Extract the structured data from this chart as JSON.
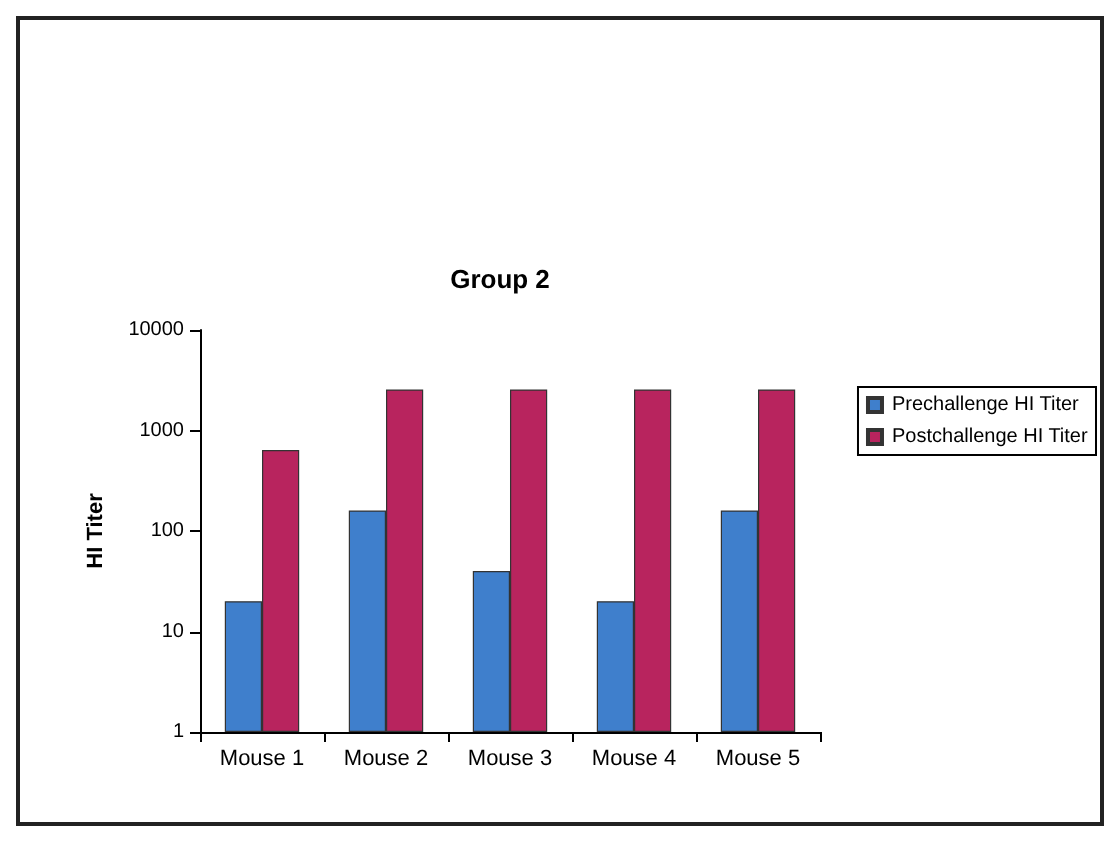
{
  "chart_data": {
    "type": "bar",
    "title": "Group 2",
    "ylabel": "HI Titer",
    "categories": [
      "Mouse 1",
      "Mouse 2",
      "Mouse 3",
      "Mouse 4",
      "Mouse 5"
    ],
    "series": [
      {
        "name": "Prechallenge HI Titer",
        "color": "#3f7fcc",
        "values": [
          20,
          160,
          40,
          20,
          160
        ]
      },
      {
        "name": "Postchallenge HI Titer",
        "color": "#b8245e",
        "values": [
          640,
          2560,
          2560,
          2560,
          2560
        ]
      }
    ],
    "log": true,
    "ylim": [
      1,
      10000
    ],
    "yticks": [
      1,
      10,
      100,
      1000,
      10000
    ],
    "grid": false,
    "legend": "right"
  }
}
